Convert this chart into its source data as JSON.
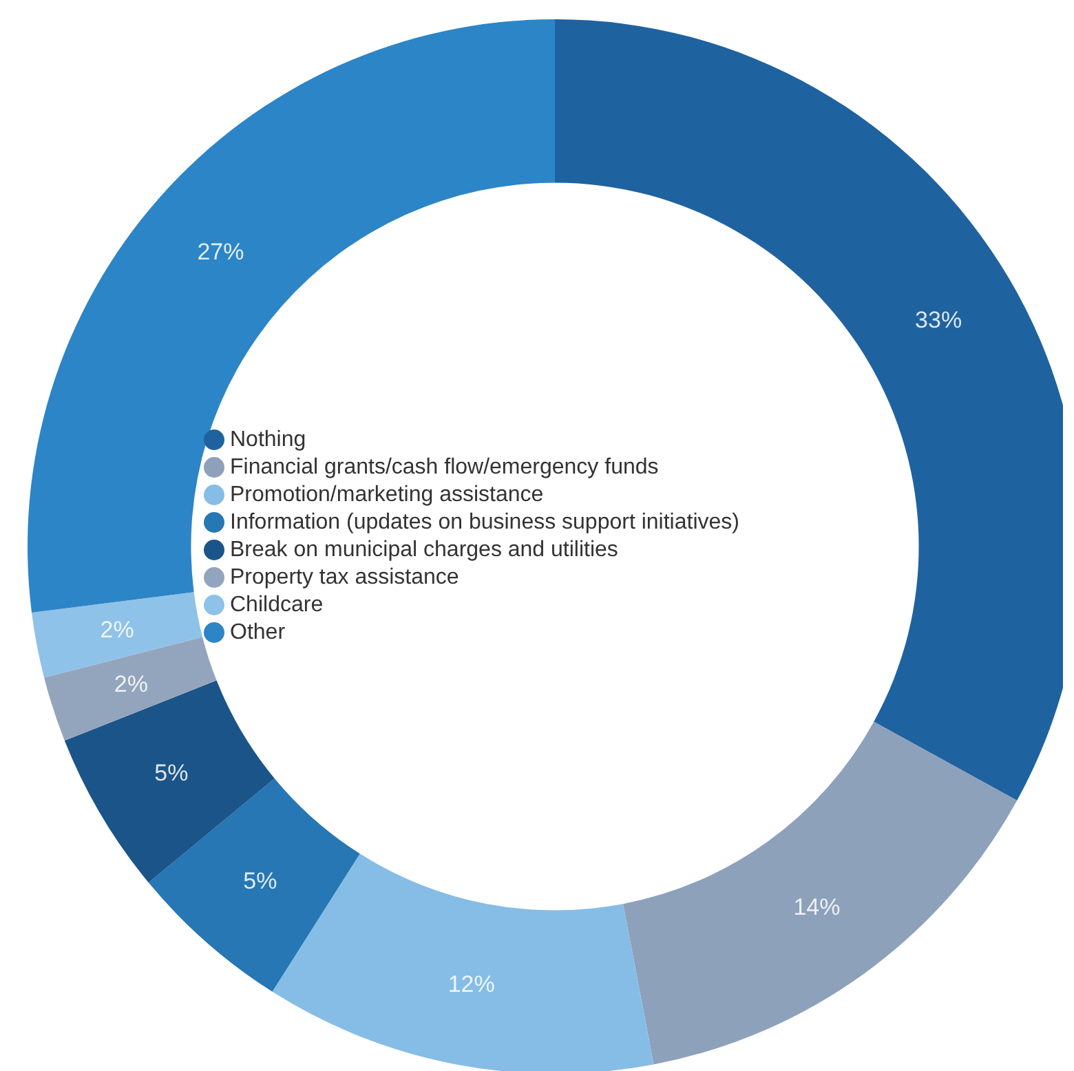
{
  "chart_data": {
    "type": "donut",
    "categories": [
      "Nothing",
      "Financial grants/cash flow/emergency funds",
      "Promotion/marketing assistance",
      "Information (updates on business support initiatives)",
      "Break on municipal charges and utilities",
      "Property tax assistance",
      "Childcare",
      "Other"
    ],
    "values": [
      33,
      14,
      12,
      5,
      5,
      2,
      2,
      27
    ],
    "colors": [
      "#1f62a0",
      "#8da1bb",
      "#86bde6",
      "#2677b3",
      "#1b5488",
      "#93a5bd",
      "#8fc2e8",
      "#2c85c6"
    ],
    "value_labels": [
      "33%",
      "14%",
      "12%",
      "5%",
      "5%",
      "2%",
      "2%",
      "27%"
    ],
    "legend": "left"
  }
}
